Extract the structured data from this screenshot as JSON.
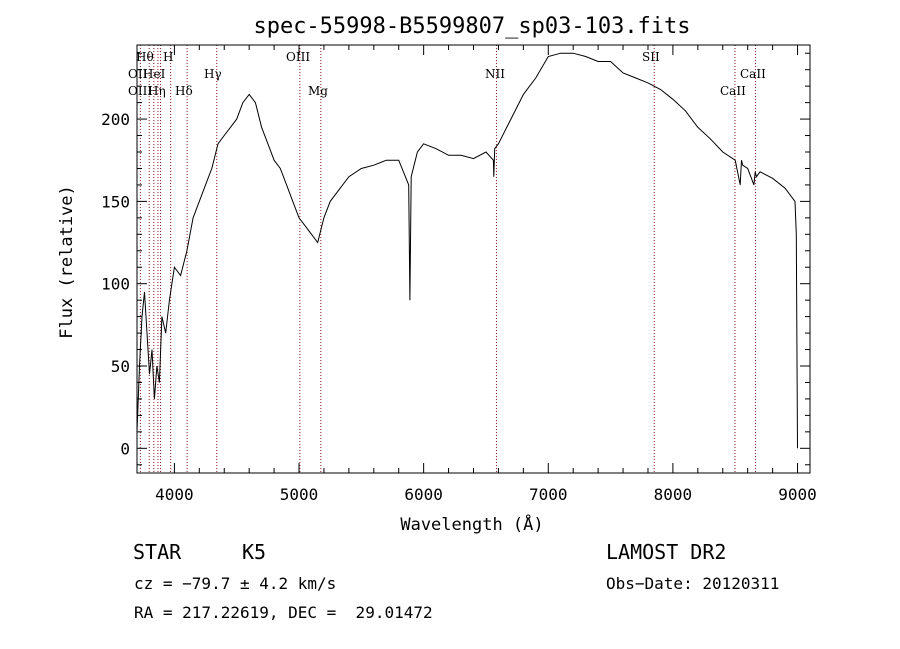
{
  "chart_data": {
    "type": "line",
    "title": "spec-55998-B5599807_sp03-103.fits",
    "xlabel": "Wavelength (Å)",
    "ylabel": "Flux (relative)",
    "xlim": [
      3700,
      9100
    ],
    "ylim": [
      -15,
      245
    ],
    "xticks": [
      4000,
      5000,
      6000,
      7000,
      8000,
      9000
    ],
    "yticks": [
      0,
      50,
      100,
      150,
      200
    ],
    "grid": false,
    "line_color": "#000000",
    "marker_color": "#8b1a1a",
    "series": [
      {
        "x": [
          3700,
          3720,
          3740,
          3760,
          3780,
          3800,
          3820,
          3840,
          3860,
          3880,
          3900,
          3930,
          3960,
          4000,
          4050,
          4100,
          4150,
          4200,
          4250,
          4300,
          4350,
          4400,
          4450,
          4500,
          4550,
          4600,
          4650,
          4700,
          4750,
          4800,
          4850,
          4900,
          4950,
          5000,
          5050,
          5100,
          5150,
          5200,
          5250,
          5300,
          5400,
          5500,
          5600,
          5700,
          5800,
          5880,
          5890,
          5900,
          5950,
          6000,
          6100,
          6200,
          6300,
          6400,
          6500,
          6560,
          6563,
          6570,
          6600,
          6700,
          6800,
          6900,
          7000,
          7100,
          7200,
          7300,
          7400,
          7500,
          7600,
          7700,
          7800,
          7900,
          8000,
          8100,
          8200,
          8300,
          8400,
          8500,
          8540,
          8550,
          8560,
          8600,
          8650,
          8660,
          8670,
          8700,
          8800,
          8900,
          8980,
          8990,
          9000
        ],
        "values": [
          10,
          50,
          80,
          95,
          70,
          45,
          60,
          30,
          50,
          40,
          80,
          70,
          90,
          110,
          105,
          120,
          140,
          150,
          160,
          170,
          185,
          190,
          195,
          200,
          210,
          215,
          210,
          195,
          185,
          175,
          170,
          160,
          150,
          140,
          135,
          130,
          125,
          140,
          150,
          155,
          165,
          170,
          172,
          175,
          175,
          160,
          90,
          165,
          180,
          185,
          182,
          178,
          178,
          176,
          180,
          175,
          165,
          182,
          185,
          200,
          215,
          225,
          238,
          240,
          240,
          238,
          235,
          235,
          228,
          225,
          222,
          218,
          212,
          205,
          195,
          188,
          180,
          175,
          160,
          175,
          172,
          170,
          160,
          168,
          165,
          168,
          164,
          158,
          150,
          130,
          0
        ]
      }
    ],
    "lines": [
      {
        "name": "Hθ",
        "x": 3798
      },
      {
        "name": "OII",
        "x": 3727
      },
      {
        "name": "OIII",
        "x": 3868
      },
      {
        "name": "HeI",
        "x": 3889
      },
      {
        "name": "Hη",
        "x": 3835
      },
      {
        "name": "H",
        "x": 3970
      },
      {
        "name": "Hδ",
        "x": 4102
      },
      {
        "name": "Hγ",
        "x": 4340
      },
      {
        "name": "OIII",
        "x": 5007
      },
      {
        "name": "Mg",
        "x": 5175
      },
      {
        "name": "NII",
        "x": 6584
      },
      {
        "name": "SII",
        "x": 7850
      },
      {
        "name": "CaII",
        "x": 8498
      },
      {
        "name": "CaII",
        "x": 8662
      }
    ]
  },
  "info": {
    "object_class": "STAR",
    "subclass": "K5",
    "survey": "LAMOST DR2",
    "cz": "cz = −79.7 ± 4.2 km/s",
    "obs_date": "Obs−Date: 20120311",
    "coords": "RA = 217.22619, DEC =  29.01472"
  }
}
